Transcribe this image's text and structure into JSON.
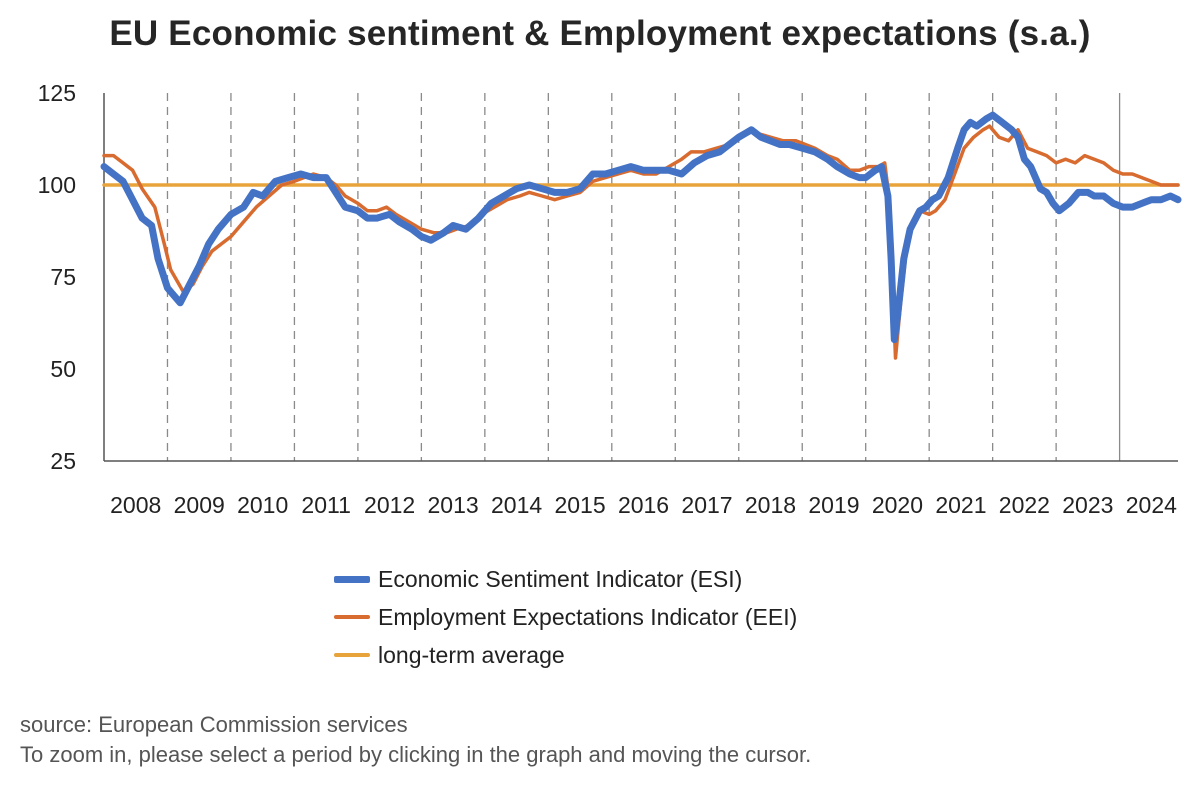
{
  "chart_data": {
    "type": "line",
    "title": "EU Economic sentiment & Employment expectations (s.a.)",
    "xlabel": "",
    "ylabel": "",
    "x_range": [
      2008.0,
      2024.92
    ],
    "ylim": [
      25,
      125
    ],
    "yticks": [
      25,
      50,
      75,
      100,
      125
    ],
    "year_labels": [
      "2008",
      "2009",
      "2010",
      "2011",
      "2012",
      "2013",
      "2014",
      "2015",
      "2016",
      "2017",
      "2018",
      "2019",
      "2020",
      "2021",
      "2022",
      "2023",
      "2024"
    ],
    "grid": "vertical dashed at year boundaries",
    "legend_position": "bottom",
    "series": [
      {
        "name": "Economic Sentiment Indicator (ESI)",
        "color": "#4472C4",
        "width": "thick",
        "points": [
          [
            2008.0,
            105
          ],
          [
            2008.15,
            103
          ],
          [
            2008.3,
            101
          ],
          [
            2008.45,
            96
          ],
          [
            2008.6,
            91
          ],
          [
            2008.75,
            89
          ],
          [
            2008.85,
            80
          ],
          [
            2009.0,
            72
          ],
          [
            2009.1,
            70
          ],
          [
            2009.2,
            68
          ],
          [
            2009.35,
            73
          ],
          [
            2009.5,
            78
          ],
          [
            2009.65,
            84
          ],
          [
            2009.8,
            88
          ],
          [
            2010.0,
            92
          ],
          [
            2010.2,
            94
          ],
          [
            2010.35,
            98
          ],
          [
            2010.5,
            97
          ],
          [
            2010.7,
            101
          ],
          [
            2010.9,
            102
          ],
          [
            2011.1,
            103
          ],
          [
            2011.3,
            102
          ],
          [
            2011.5,
            102
          ],
          [
            2011.65,
            98
          ],
          [
            2011.8,
            94
          ],
          [
            2012.0,
            93
          ],
          [
            2012.15,
            91
          ],
          [
            2012.3,
            91
          ],
          [
            2012.5,
            92
          ],
          [
            2012.65,
            90
          ],
          [
            2012.85,
            88
          ],
          [
            2013.0,
            86
          ],
          [
            2013.15,
            85
          ],
          [
            2013.35,
            87
          ],
          [
            2013.5,
            89
          ],
          [
            2013.7,
            88
          ],
          [
            2013.9,
            91
          ],
          [
            2014.1,
            95
          ],
          [
            2014.3,
            97
          ],
          [
            2014.5,
            99
          ],
          [
            2014.7,
            100
          ],
          [
            2014.9,
            99
          ],
          [
            2015.1,
            98
          ],
          [
            2015.3,
            98
          ],
          [
            2015.5,
            99
          ],
          [
            2015.7,
            103
          ],
          [
            2015.9,
            103
          ],
          [
            2016.1,
            104
          ],
          [
            2016.3,
            105
          ],
          [
            2016.5,
            104
          ],
          [
            2016.7,
            104
          ],
          [
            2016.9,
            104
          ],
          [
            2017.1,
            103
          ],
          [
            2017.3,
            106
          ],
          [
            2017.5,
            108
          ],
          [
            2017.7,
            109
          ],
          [
            2017.85,
            111
          ],
          [
            2018.0,
            113
          ],
          [
            2018.1,
            114
          ],
          [
            2018.2,
            115
          ],
          [
            2018.35,
            113
          ],
          [
            2018.5,
            112
          ],
          [
            2018.65,
            111
          ],
          [
            2018.8,
            111
          ],
          [
            2019.0,
            110
          ],
          [
            2019.2,
            109
          ],
          [
            2019.4,
            107
          ],
          [
            2019.55,
            105
          ],
          [
            2019.75,
            103
          ],
          [
            2019.9,
            102
          ],
          [
            2020.0,
            102
          ],
          [
            2020.15,
            104
          ],
          [
            2020.25,
            105
          ],
          [
            2020.35,
            97
          ],
          [
            2020.4,
            80
          ],
          [
            2020.45,
            58
          ],
          [
            2020.5,
            64
          ],
          [
            2020.6,
            80
          ],
          [
            2020.7,
            88
          ],
          [
            2020.85,
            93
          ],
          [
            2020.95,
            94
          ],
          [
            2021.05,
            96
          ],
          [
            2021.15,
            97
          ],
          [
            2021.3,
            102
          ],
          [
            2021.45,
            110
          ],
          [
            2021.55,
            115
          ],
          [
            2021.65,
            117
          ],
          [
            2021.75,
            116
          ],
          [
            2021.9,
            118
          ],
          [
            2022.0,
            119
          ],
          [
            2022.15,
            117
          ],
          [
            2022.3,
            115
          ],
          [
            2022.4,
            113
          ],
          [
            2022.5,
            107
          ],
          [
            2022.6,
            105
          ],
          [
            2022.75,
            99
          ],
          [
            2022.85,
            98
          ],
          [
            2022.95,
            95
          ],
          [
            2023.05,
            93
          ],
          [
            2023.2,
            95
          ],
          [
            2023.35,
            98
          ],
          [
            2023.5,
            98
          ],
          [
            2023.6,
            97
          ],
          [
            2023.75,
            97
          ],
          [
            2023.9,
            95
          ],
          [
            2024.05,
            94
          ],
          [
            2024.2,
            94
          ],
          [
            2024.35,
            95
          ],
          [
            2024.5,
            96
          ],
          [
            2024.65,
            96
          ],
          [
            2024.8,
            97
          ],
          [
            2024.92,
            96
          ]
        ]
      },
      {
        "name": "Employment Expectations Indicator (EEI)",
        "color": "#D86B2F",
        "width": "normal",
        "points": [
          [
            2008.0,
            108
          ],
          [
            2008.15,
            108
          ],
          [
            2008.3,
            106
          ],
          [
            2008.45,
            104
          ],
          [
            2008.6,
            99
          ],
          [
            2008.8,
            94
          ],
          [
            2008.95,
            84
          ],
          [
            2009.05,
            77
          ],
          [
            2009.15,
            74
          ],
          [
            2009.25,
            71
          ],
          [
            2009.4,
            73
          ],
          [
            2009.55,
            78
          ],
          [
            2009.7,
            82
          ],
          [
            2009.85,
            84
          ],
          [
            2010.0,
            86
          ],
          [
            2010.2,
            90
          ],
          [
            2010.4,
            94
          ],
          [
            2010.6,
            97
          ],
          [
            2010.8,
            100
          ],
          [
            2011.0,
            101
          ],
          [
            2011.15,
            102
          ],
          [
            2011.3,
            103
          ],
          [
            2011.5,
            102
          ],
          [
            2011.65,
            100
          ],
          [
            2011.8,
            97
          ],
          [
            2012.0,
            95
          ],
          [
            2012.15,
            93
          ],
          [
            2012.3,
            93
          ],
          [
            2012.45,
            94
          ],
          [
            2012.6,
            92
          ],
          [
            2012.8,
            90
          ],
          [
            2013.0,
            88
          ],
          [
            2013.2,
            87
          ],
          [
            2013.4,
            87
          ],
          [
            2013.55,
            88
          ],
          [
            2013.75,
            89
          ],
          [
            2013.95,
            92
          ],
          [
            2014.15,
            94
          ],
          [
            2014.35,
            96
          ],
          [
            2014.55,
            97
          ],
          [
            2014.7,
            98
          ],
          [
            2014.9,
            97
          ],
          [
            2015.1,
            96
          ],
          [
            2015.3,
            97
          ],
          [
            2015.5,
            98
          ],
          [
            2015.7,
            101
          ],
          [
            2015.9,
            102
          ],
          [
            2016.1,
            103
          ],
          [
            2016.3,
            104
          ],
          [
            2016.5,
            103
          ],
          [
            2016.7,
            103
          ],
          [
            2016.9,
            105
          ],
          [
            2017.1,
            107
          ],
          [
            2017.25,
            109
          ],
          [
            2017.45,
            109
          ],
          [
            2017.65,
            110
          ],
          [
            2017.85,
            111
          ],
          [
            2018.0,
            113
          ],
          [
            2018.15,
            115
          ],
          [
            2018.3,
            114
          ],
          [
            2018.5,
            113
          ],
          [
            2018.7,
            112
          ],
          [
            2018.9,
            112
          ],
          [
            2019.05,
            111
          ],
          [
            2019.2,
            110
          ],
          [
            2019.4,
            108
          ],
          [
            2019.55,
            107
          ],
          [
            2019.75,
            104
          ],
          [
            2019.9,
            104
          ],
          [
            2020.05,
            105
          ],
          [
            2020.2,
            105
          ],
          [
            2020.3,
            106
          ],
          [
            2020.38,
            95
          ],
          [
            2020.43,
            70
          ],
          [
            2020.47,
            53
          ],
          [
            2020.55,
            68
          ],
          [
            2020.65,
            84
          ],
          [
            2020.75,
            90
          ],
          [
            2020.85,
            93
          ],
          [
            2021.0,
            92
          ],
          [
            2021.1,
            93
          ],
          [
            2021.25,
            96
          ],
          [
            2021.4,
            103
          ],
          [
            2021.55,
            110
          ],
          [
            2021.7,
            113
          ],
          [
            2021.85,
            115
          ],
          [
            2021.95,
            116
          ],
          [
            2022.1,
            113
          ],
          [
            2022.25,
            112
          ],
          [
            2022.4,
            115
          ],
          [
            2022.55,
            110
          ],
          [
            2022.7,
            109
          ],
          [
            2022.85,
            108
          ],
          [
            2023.0,
            106
          ],
          [
            2023.15,
            107
          ],
          [
            2023.3,
            106
          ],
          [
            2023.45,
            108
          ],
          [
            2023.6,
            107
          ],
          [
            2023.75,
            106
          ],
          [
            2023.9,
            104
          ],
          [
            2024.05,
            103
          ],
          [
            2024.2,
            103
          ],
          [
            2024.35,
            102
          ],
          [
            2024.5,
            101
          ],
          [
            2024.65,
            100
          ],
          [
            2024.8,
            100
          ],
          [
            2024.92,
            100
          ]
        ]
      },
      {
        "name": "long-term average",
        "color": "#E8A33A",
        "width": "normal",
        "points": [
          [
            2008.0,
            100
          ],
          [
            2024.92,
            100
          ]
        ]
      }
    ]
  },
  "footer": {
    "source": "source: European Commission services",
    "hint": "To zoom in, please select a period by clicking in the graph and moving the cursor."
  }
}
